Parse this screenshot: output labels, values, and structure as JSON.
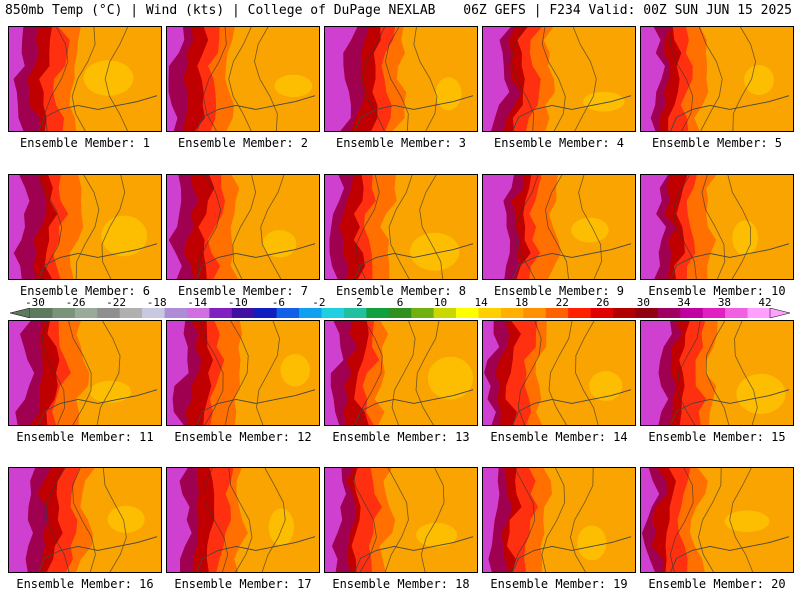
{
  "header": {
    "left": "850mb Temp (°C) | Wind (kts) | College of DuPage NEXLAB",
    "right": "06Z GEFS | F234 Valid: 00Z SUN JUN 15 2025"
  },
  "members": [
    {
      "label": "Ensemble Member: 1"
    },
    {
      "label": "Ensemble Member: 2"
    },
    {
      "label": "Ensemble Member: 3"
    },
    {
      "label": "Ensemble Member: 4"
    },
    {
      "label": "Ensemble Member: 5"
    },
    {
      "label": "Ensemble Member: 6"
    },
    {
      "label": "Ensemble Member: 7"
    },
    {
      "label": "Ensemble Member: 8"
    },
    {
      "label": "Ensemble Member: 9"
    },
    {
      "label": "Ensemble Member: 10"
    },
    {
      "label": "Ensemble Member: 11"
    },
    {
      "label": "Ensemble Member: 12"
    },
    {
      "label": "Ensemble Member: 13"
    },
    {
      "label": "Ensemble Member: 14"
    },
    {
      "label": "Ensemble Member: 15"
    },
    {
      "label": "Ensemble Member: 16"
    },
    {
      "label": "Ensemble Member: 17"
    },
    {
      "label": "Ensemble Member: 18"
    },
    {
      "label": "Ensemble Member: 19"
    },
    {
      "label": "Ensemble Member: 20"
    }
  ],
  "colorbar": {
    "tick_labels": [
      "-30",
      "-26",
      "-22",
      "-18",
      "-14",
      "-10",
      "-6",
      "-2",
      "2",
      "6",
      "10",
      "14",
      "18",
      "22",
      "26",
      "30",
      "34",
      "38",
      "42"
    ],
    "colors": [
      "#5e7a5e",
      "#7a947a",
      "#9aaa9a",
      "#8f8f8f",
      "#b0b0b0",
      "#c8c8e0",
      "#b08cd8",
      "#d070e0",
      "#8020c0",
      "#4010a0",
      "#1020c0",
      "#1060e8",
      "#10a0f0",
      "#20d0e0",
      "#20c0a0",
      "#10a040",
      "#309020",
      "#70b010",
      "#c8d800",
      "#ffff00",
      "#ffd000",
      "#ffb000",
      "#ff9000",
      "#ff6000",
      "#ff2000",
      "#e00000",
      "#b00000",
      "#900010",
      "#a00060",
      "#c000a0",
      "#e020c0",
      "#f060e0",
      "#ffa0ff"
    ]
  }
}
